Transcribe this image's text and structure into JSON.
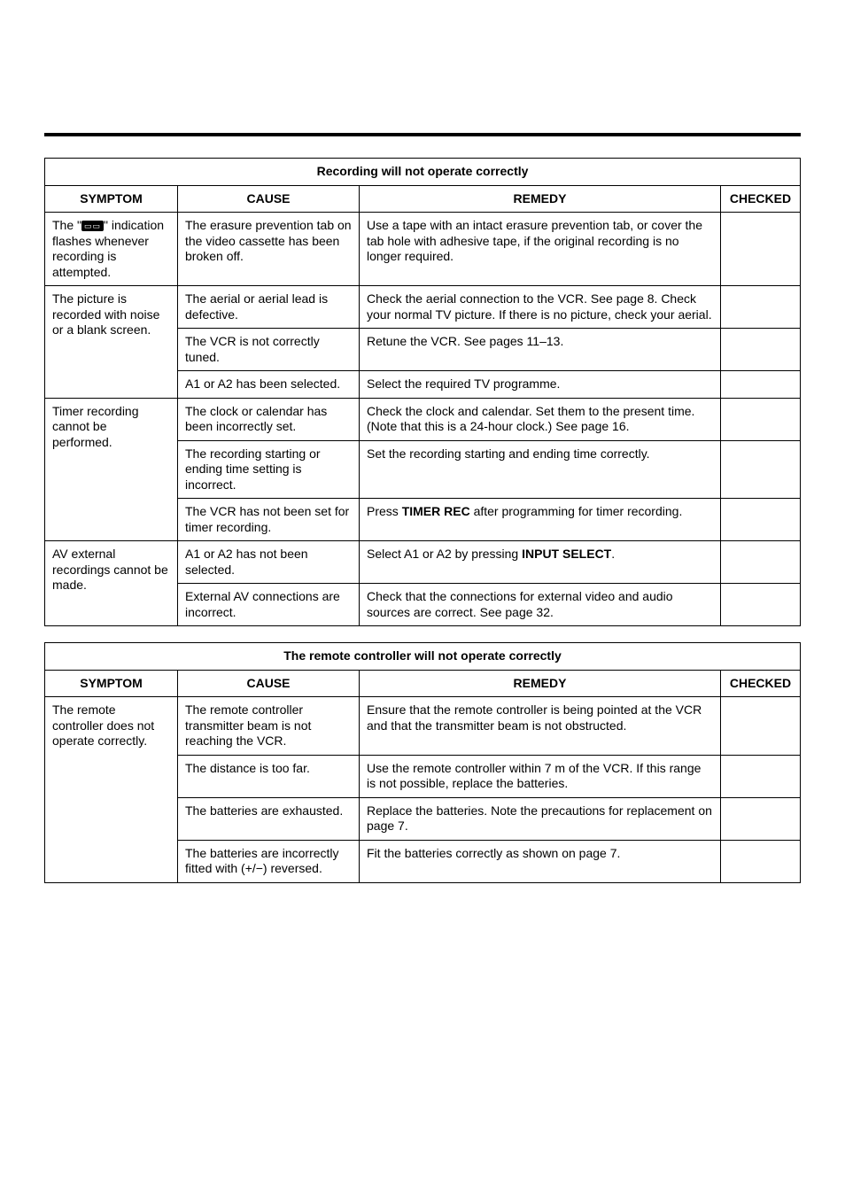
{
  "section1": {
    "title": "Recording will not operate correctly",
    "headers": {
      "symptom": "SYMPTOM",
      "cause": "CAUSE",
      "remedy": "REMEDY",
      "checked": "CHECKED"
    },
    "groups": [
      {
        "symptom_pre": "The \"",
        "symptom_icon": "▭▭",
        "symptom_post": "\" indication flashes whenever recording is attempted.",
        "rows": [
          {
            "cause": "The erasure prevention tab on the video cassette has been broken off.",
            "remedy": "Use a tape with an intact erasure prevention tab, or cover the tab hole with adhesive tape, if the original recording is no longer required."
          }
        ]
      },
      {
        "symptom": "The picture is recorded with noise or a blank screen.",
        "rows": [
          {
            "cause": "The aerial or aerial lead is defective.",
            "remedy": "Check the aerial connection to the VCR. See page 8. Check your normal TV picture. If there is no picture, check your aerial."
          },
          {
            "cause": "The VCR is not correctly tuned.",
            "remedy": "Retune the VCR. See pages 11–13."
          },
          {
            "cause": "A1 or A2 has been selected.",
            "remedy": "Select the required TV programme."
          }
        ]
      },
      {
        "symptom": "Timer recording cannot be performed.",
        "rows": [
          {
            "cause": "The clock or calendar has been incorrectly set.",
            "remedy": "Check the clock and calendar. Set them to the present time. (Note that this is a 24-hour clock.) See page 16."
          },
          {
            "cause": "The recording starting or ending time setting is incorrect.",
            "remedy": "Set the recording starting and ending time correctly."
          },
          {
            "cause": "The VCR has not been set for timer recording.",
            "remedy_pre": "Press ",
            "remedy_bold": "TIMER REC",
            "remedy_post": " after programming for timer recording."
          }
        ]
      },
      {
        "symptom": "AV external recordings cannot be made.",
        "rows": [
          {
            "cause": "A1 or A2 has not been selected.",
            "remedy_pre": "Select A1 or A2 by pressing ",
            "remedy_bold": "INPUT SELECT",
            "remedy_post": "."
          },
          {
            "cause": "External AV connections are incorrect.",
            "remedy": "Check that the connections for external video and audio sources are correct. See page 32."
          }
        ]
      }
    ]
  },
  "section2": {
    "title": "The remote controller will not operate correctly",
    "headers": {
      "symptom": "SYMPTOM",
      "cause": "CAUSE",
      "remedy": "REMEDY",
      "checked": "CHECKED"
    },
    "groups": [
      {
        "symptom": "The remote controller does not operate correctly.",
        "rows": [
          {
            "cause": "The remote controller transmitter beam is not reaching the VCR.",
            "remedy": "Ensure that the remote controller is being pointed at the VCR and that the transmitter beam is not obstructed."
          },
          {
            "cause": "The distance is too far.",
            "remedy": "Use the remote controller within 7 m of the VCR. If this range is not possible, replace the batteries."
          },
          {
            "cause": "The batteries are exhausted.",
            "remedy": "Replace the batteries. Note the precautions for replacement on page 7."
          },
          {
            "cause": "The batteries are incorrectly fitted with (+/−) reversed.",
            "remedy": "Fit the batteries correctly as shown on page 7."
          }
        ]
      }
    ]
  }
}
